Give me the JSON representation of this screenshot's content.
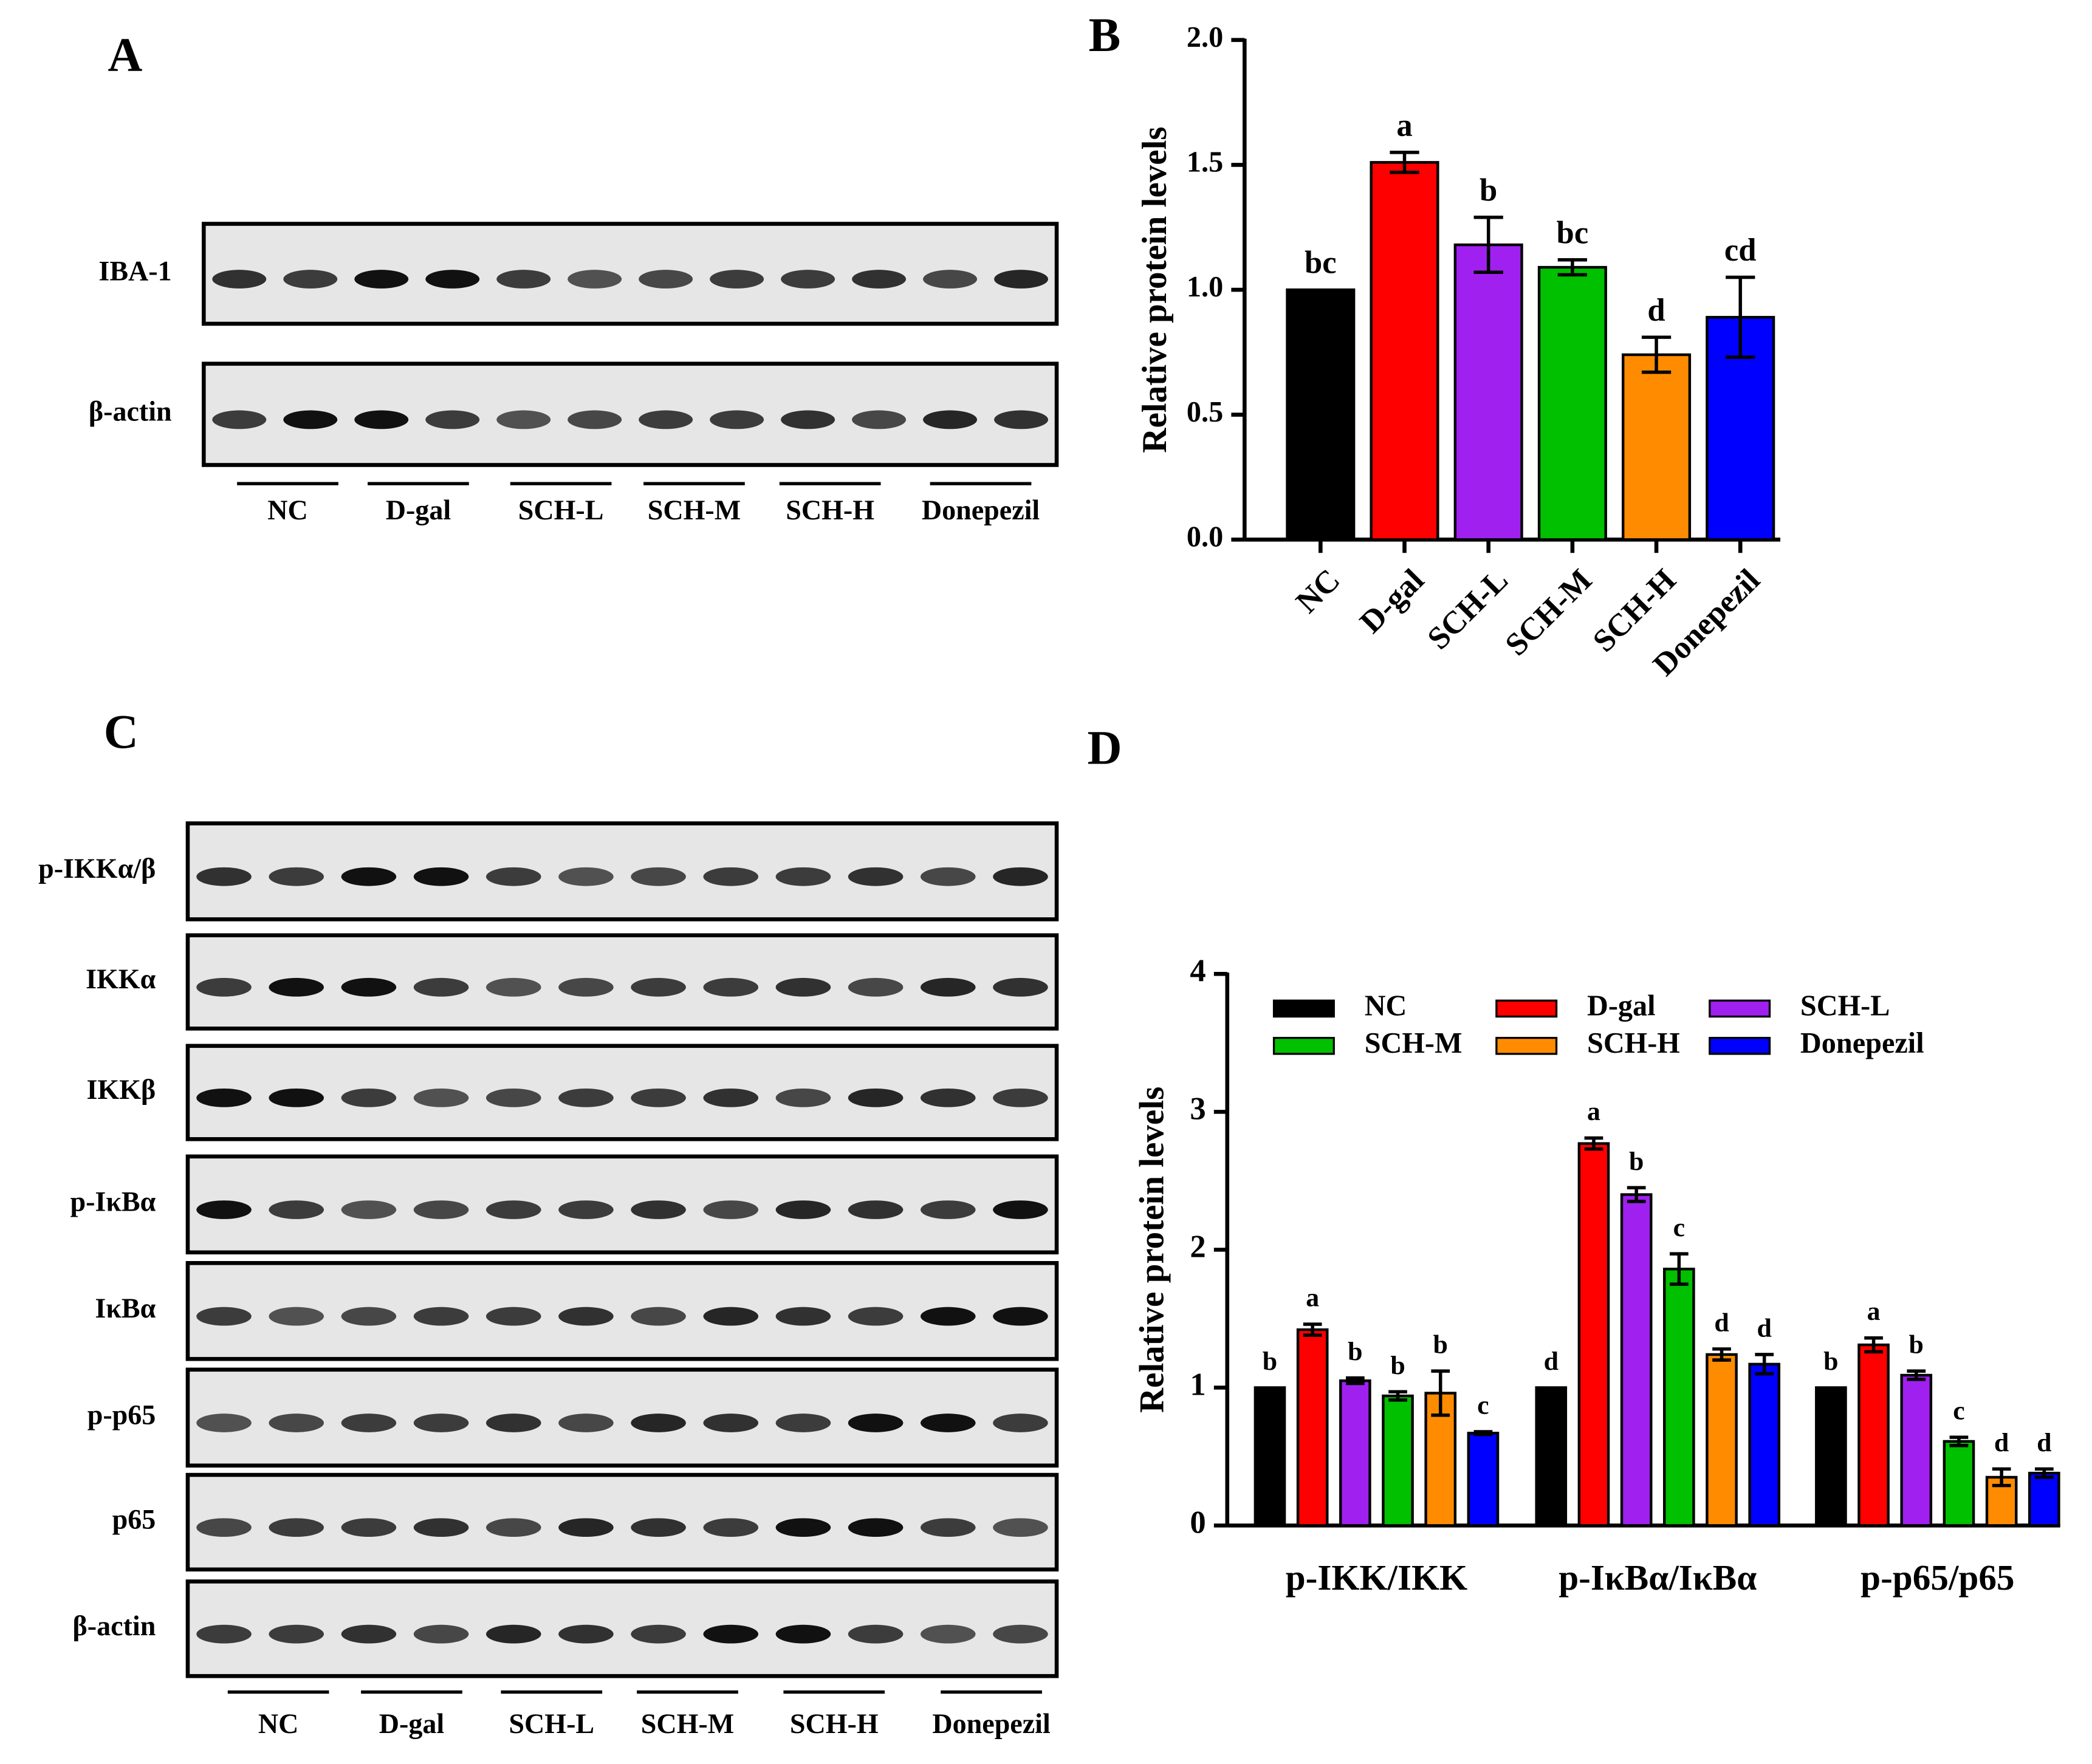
{
  "chart_data": [
    {
      "type": "bar",
      "panel": "B",
      "ylabel": "Relative protein levels",
      "categories": [
        "NC",
        "D-gal",
        "SCH-L",
        "SCH-M",
        "SCH-H",
        "Donepezil"
      ],
      "values": [
        1.0,
        1.51,
        1.18,
        1.09,
        0.74,
        0.89
      ],
      "errors": [
        0,
        0.04,
        0.11,
        0.03,
        0.07,
        0.16
      ],
      "letters": [
        "bc",
        "a",
        "b",
        "bc",
        "d",
        "cd"
      ],
      "colors": [
        "#000000",
        "#ff0000",
        "#a020f0",
        "#00c000",
        "#ff8c00",
        "#0000ff"
      ],
      "ylim": [
        0,
        2
      ],
      "yticks": [
        {
          "value": 0,
          "label": "0.0"
        },
        {
          "value": 0.5,
          "label": "0.5"
        },
        {
          "value": 1,
          "label": "1.0"
        },
        {
          "value": 1.5,
          "label": "1.5"
        },
        {
          "value": 2,
          "label": "2.0"
        }
      ]
    },
    {
      "type": "bar",
      "panel": "D",
      "ylabel": "Relative protein levels",
      "categories": [
        "p-IKK/IKK",
        "p-IκBα/IκBα",
        "p-p65/p65"
      ],
      "series": [
        {
          "name": "NC",
          "color": "#000000",
          "values": [
            1,
            1,
            1
          ],
          "errors": [
            0,
            0,
            0
          ],
          "letters": [
            "b",
            "d",
            "b"
          ]
        },
        {
          "name": "D-gal",
          "color": "#ff0000",
          "values": [
            1.42,
            2.77,
            1.31
          ],
          "errors": [
            0.04,
            0.04,
            0.05
          ],
          "letters": [
            "a",
            "a",
            "a"
          ]
        },
        {
          "name": "SCH-L",
          "color": "#a020f0",
          "values": [
            1.05,
            2.4,
            1.09
          ],
          "errors": [
            0.02,
            0.05,
            0.03
          ],
          "letters": [
            "b",
            "b",
            "b"
          ]
        },
        {
          "name": "SCH-M",
          "color": "#00c000",
          "values": [
            0.94,
            1.86,
            0.61
          ],
          "errors": [
            0.03,
            0.11,
            0.03
          ],
          "letters": [
            "b",
            "c",
            "c"
          ]
        },
        {
          "name": "SCH-H",
          "color": "#ff8c00",
          "values": [
            0.96,
            1.24,
            0.35
          ],
          "errors": [
            0.16,
            0.04,
            0.06
          ],
          "letters": [
            "b",
            "d",
            "d"
          ]
        },
        {
          "name": "Donepezil",
          "color": "#0000ff",
          "values": [
            0.67,
            1.17,
            0.38
          ],
          "errors": [
            0.01,
            0.07,
            0.03
          ],
          "letters": [
            "c",
            "d",
            "d"
          ]
        }
      ],
      "ylim": [
        0,
        4
      ],
      "yticks": [
        0,
        1,
        2,
        3,
        4
      ],
      "legend": "upper left"
    }
  ],
  "blots": [
    {
      "panel": "A",
      "rows": [
        "IBA-1",
        "β-actin"
      ],
      "groups": [
        "NC",
        "D-gal",
        "SCH-L",
        "SCH-M",
        "SCH-H",
        "Donepezil"
      ]
    },
    {
      "panel": "C",
      "rows": [
        "p-IKKα/β",
        "IKKα",
        "IKKβ",
        "p-IκBα",
        "IκBα",
        "p-p65",
        "p65",
        "β-actin"
      ],
      "groups": [
        "NC",
        "D-gal",
        "SCH-L",
        "SCH-M",
        "SCH-H",
        "Donepezil"
      ]
    }
  ]
}
